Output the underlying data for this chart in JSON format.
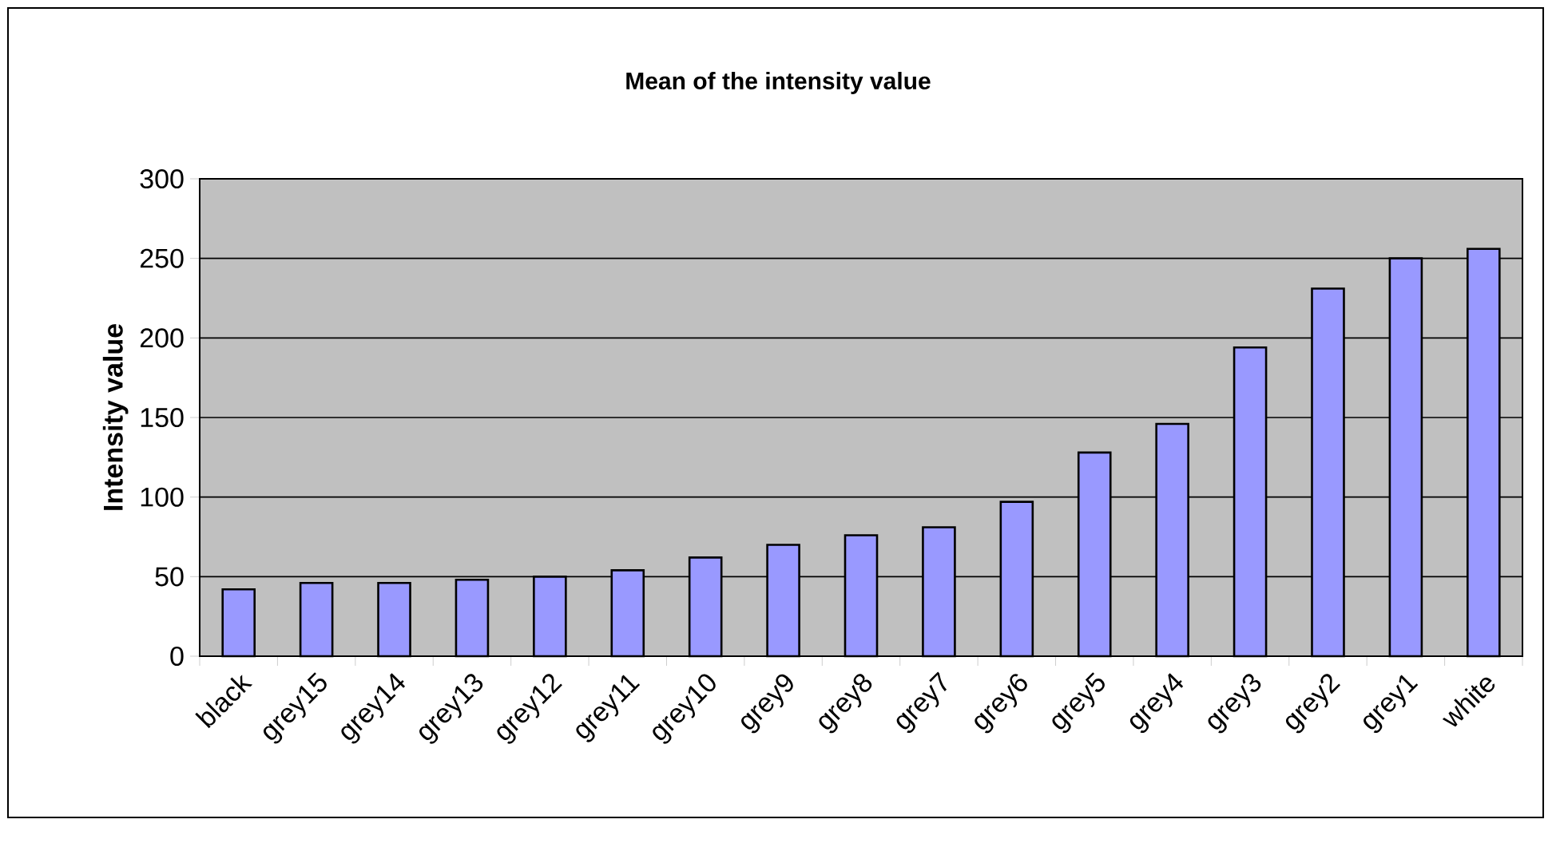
{
  "chart_data": {
    "type": "bar",
    "title": "Mean of the intensity value",
    "ylabel": "Intensity value",
    "categories": [
      "black",
      "grey15",
      "grey14",
      "grey13",
      "grey12",
      "grey11",
      "grey10",
      "grey9",
      "grey8",
      "grey7",
      "grey6",
      "grey5",
      "grey4",
      "grey3",
      "grey2",
      "grey1",
      "white"
    ],
    "values": [
      42,
      46,
      46,
      48,
      50,
      54,
      62,
      70,
      76,
      81,
      97,
      128,
      146,
      194,
      231,
      250,
      256
    ],
    "color": "#9999ff",
    "ylim": [
      0,
      300
    ],
    "yticks": [
      0,
      50,
      100,
      150,
      200,
      250,
      300
    ],
    "grid": "y"
  }
}
